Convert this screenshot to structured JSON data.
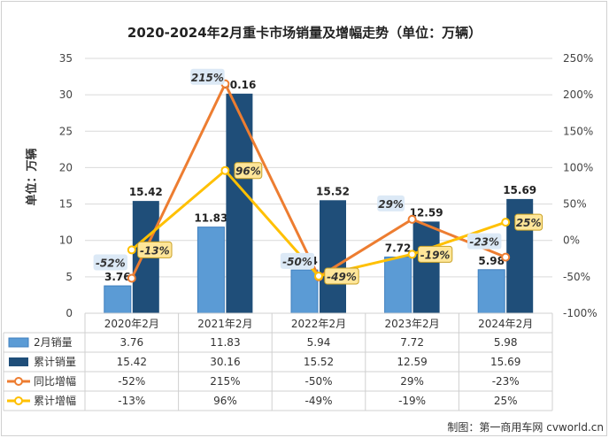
{
  "chart_data": {
    "type": "bar",
    "title": "2020-2024年2月重卡市场销量及增幅走势（单位：万辆）",
    "ylabel": "单位：万辆",
    "ylim": [
      0,
      35
    ],
    "y_ticks": [
      "0",
      "5",
      "10",
      "15",
      "20",
      "25",
      "30",
      "35"
    ],
    "y2lim": [
      -100,
      250
    ],
    "y2_ticks": [
      "-100%",
      "-50%",
      "0%",
      "50%",
      "100%",
      "150%",
      "200%",
      "250%"
    ],
    "categories": [
      "2020年2月",
      "2021年2月",
      "2022年2月",
      "2023年2月",
      "2024年2月"
    ],
    "series": [
      {
        "name": "2月销量",
        "type": "bar",
        "axis": "left",
        "color": "#5b9bd5",
        "values": [
          3.76,
          11.83,
          5.94,
          7.72,
          5.98
        ],
        "labels": [
          "3.76",
          "11.83",
          "5.94",
          "7.72",
          "5.98"
        ]
      },
      {
        "name": "累计销量",
        "type": "bar",
        "axis": "left",
        "color": "#1f4e79",
        "values": [
          15.42,
          30.16,
          15.52,
          12.59,
          15.69
        ],
        "labels": [
          "15.42",
          "30.16",
          "15.52",
          "12.59",
          "15.69"
        ]
      },
      {
        "name": "同比增幅",
        "type": "line",
        "axis": "right",
        "color": "#ed7d31",
        "values": [
          -52,
          215,
          -50,
          29,
          -23
        ],
        "labels": [
          "-52%",
          "215%",
          "-50%",
          "29%",
          "-23%"
        ]
      },
      {
        "name": "累计增幅",
        "type": "line",
        "axis": "right",
        "color": "#ffc000",
        "values": [
          -13,
          96,
          -49,
          -19,
          25
        ],
        "labels": [
          "-13%",
          "96%",
          "-49%",
          "-19%",
          "25%"
        ]
      }
    ],
    "grid": true,
    "legend": "table below chart"
  },
  "source_note": "制图：第一商用车网 cvworld.cn"
}
